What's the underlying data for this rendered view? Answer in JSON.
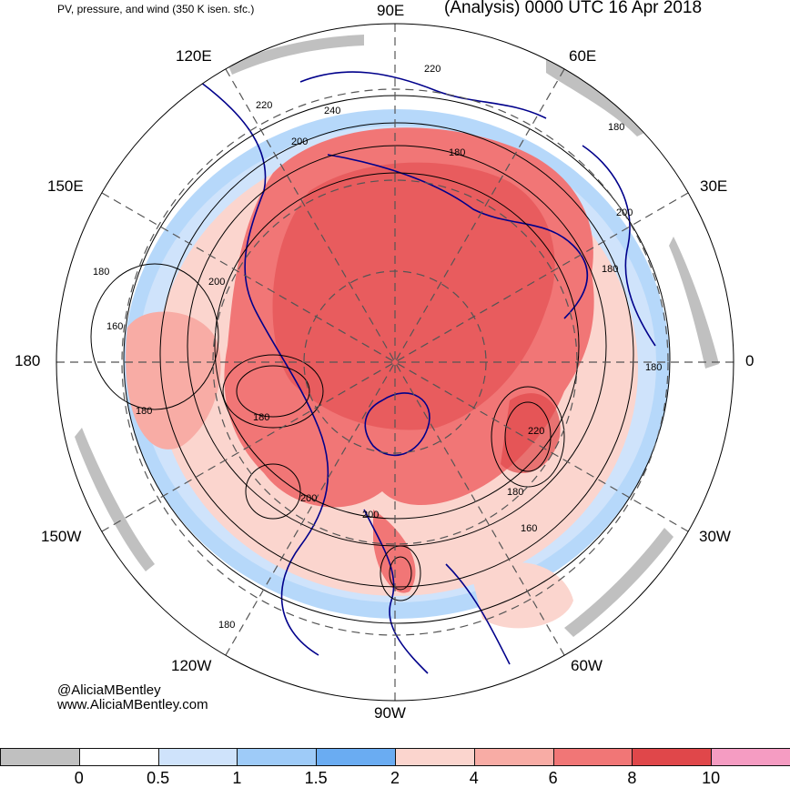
{
  "header": {
    "left_title": "PV, pressure, and wind (350 K isen. sfc.)",
    "right_title": "(Analysis) 0000 UTC 16 Apr 2018"
  },
  "longitude_labels": {
    "lon_90e": "90E",
    "lon_120e": "120E",
    "lon_60e": "60E",
    "lon_150e": "150E",
    "lon_30e": "30E",
    "lon_180": "180",
    "lon_0": "0",
    "lon_150w": "150W",
    "lon_30w": "30W",
    "lon_120w": "120W",
    "lon_60w": "60W",
    "lon_90w": "90W"
  },
  "contour_labels": [
    "220",
    "220",
    "240",
    "200",
    "180",
    "180",
    "200",
    "180",
    "200",
    "180",
    "160",
    "180",
    "180",
    "180",
    "220",
    "180",
    "200",
    "200",
    "160",
    "180"
  ],
  "credit": {
    "handle": "@AliciaMBentley",
    "website": "www.AliciaMBentley.com"
  },
  "colorbar": {
    "colors": [
      "#c0c0c0",
      "#ffffff",
      "#cfe3fb",
      "#9ecbf8",
      "#6aacf2",
      "#fbd5ce",
      "#f8aca5",
      "#f17676",
      "#e0474a",
      "#f59cc2"
    ],
    "tick_labels": [
      "0",
      "0.5",
      "1",
      "1.5",
      "2",
      "4",
      "6",
      "8",
      "10"
    ]
  },
  "map_colors": {
    "land_outline": "#00008b",
    "contour": "#000000",
    "graticule": "#555555"
  }
}
